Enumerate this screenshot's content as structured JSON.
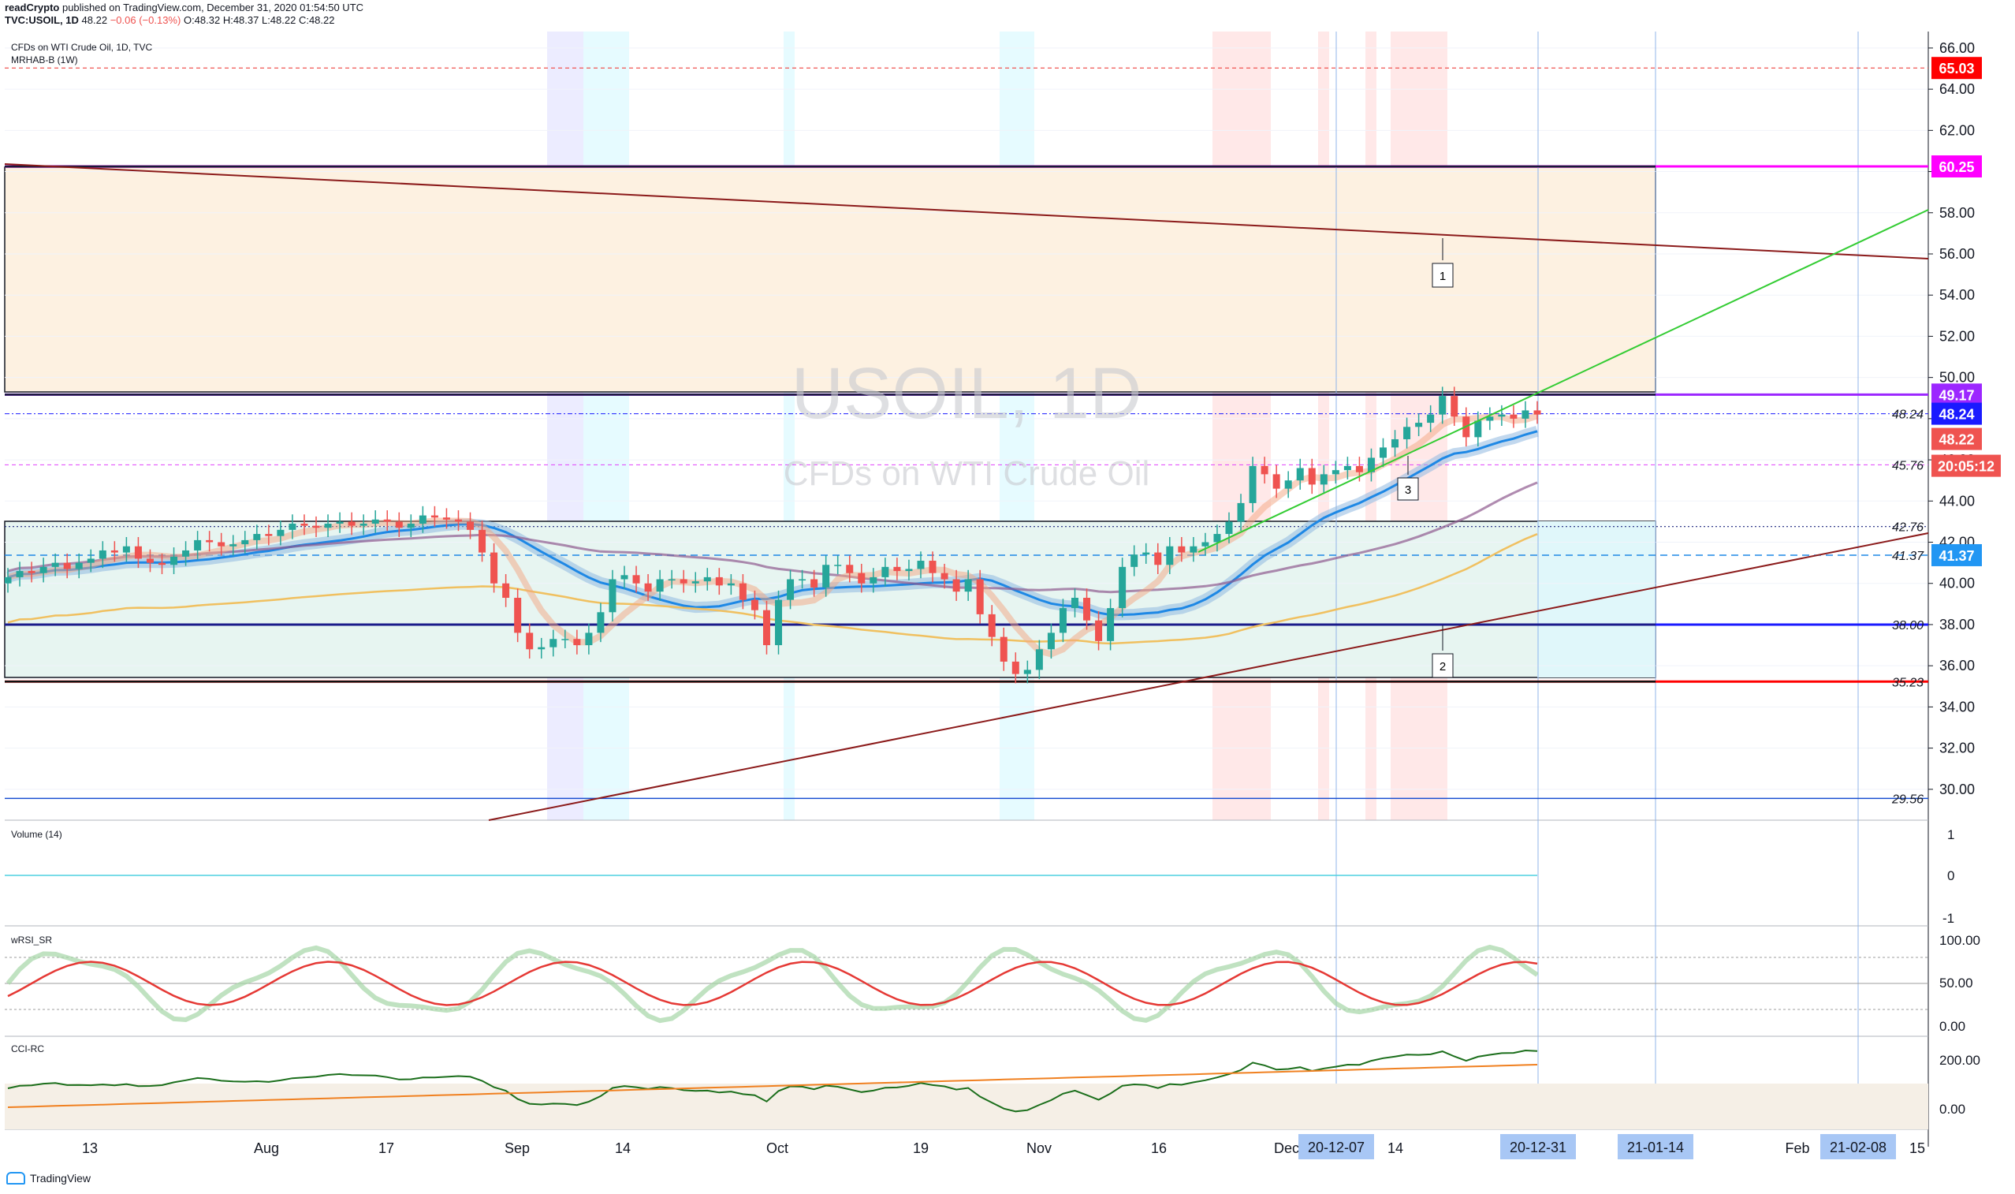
{
  "header": {
    "publisher_line": "readCrypto published on TradingView.com, December 31, 2020 01:54:50 UTC",
    "publisher_name": "readCrypto",
    "published_rest": " published on TradingView.com, December 31, 2020 01:54:50 UTC",
    "symbol_line": "TVC:USOIL, 1D",
    "price": "48.22",
    "change": "−0.06 (−0.13%)",
    "ohlc": "O:48.32 H:48.37 L:48.22 C:48.22"
  },
  "pane_labels": {
    "main_title": "CFDs on WTI Crude Oil, 1D, TVC",
    "indicator": "MRHAB-B (1W)",
    "volume": "Volume (14)",
    "wrsi": "wRSI_SR",
    "cci": "CCI-RC"
  },
  "watermark": {
    "symbol": "USOIL, 1D",
    "name": "CFDs on WTI Crude Oil"
  },
  "colors": {
    "up_candle": "#26a69a",
    "down_candle": "#ef5350",
    "resistance_line": "#8b1a1a",
    "support_trend": "#8b1a1a",
    "green_trend": "#33cc33",
    "magenta_level": "#ff00ff",
    "purple_level": "#9c27ff",
    "blue_level": "#1a1aff",
    "red_level": "#ff0000",
    "box_top": "#fff3e0",
    "box_bottom": "#e0f7fa"
  },
  "chart_data": {
    "type": "candlestick",
    "symbol": "USOIL",
    "timeframe": "1D",
    "ylim": [
      28.5,
      66.8
    ],
    "y_ticks": [
      "66.00",
      "64.00",
      "62.00",
      "60.00",
      "58.00",
      "56.00",
      "54.00",
      "52.00",
      "50.00",
      "48.00",
      "46.00",
      "44.00",
      "42.00",
      "40.00",
      "38.00",
      "36.00",
      "34.00",
      "32.00",
      "30.00"
    ],
    "x_ticks": [
      "13",
      "Aug",
      "17",
      "Sep",
      "14",
      "Oct",
      "19",
      "Nov",
      "16",
      "Dec",
      "14",
      "15",
      "Feb"
    ],
    "x_tick_labels_highlighted": [
      "20-12-07",
      "20-12-31",
      "21-01-14",
      "21-02-08"
    ],
    "price_badges": [
      {
        "value": "65.03",
        "color": "#ff0000"
      },
      {
        "value": "60.25",
        "color": "#ff00ff"
      },
      {
        "value": "49.17",
        "color": "#9c27ff"
      },
      {
        "value": "48.24",
        "color": "#1a1aff"
      },
      {
        "value": "48.22",
        "color": "#ef5350"
      },
      {
        "value": "20:05:12",
        "color": "#ef5350"
      },
      {
        "value": "41.37",
        "color": "#2196f3"
      }
    ],
    "line_labels": [
      "48.24",
      "45.76",
      "42.76",
      "41.37",
      "38.00",
      "35.23",
      "29.56"
    ],
    "levels": [
      {
        "value": 65.03,
        "style": "red-dashed"
      },
      {
        "value": 60.25,
        "style": "magenta"
      },
      {
        "value": 49.17,
        "style": "purple"
      },
      {
        "value": 48.24,
        "style": "blue-dashdot"
      },
      {
        "value": 45.76,
        "style": "magenta-dashed"
      },
      {
        "value": 42.76,
        "style": "navy-dotted"
      },
      {
        "value": 41.37,
        "style": "blue-dashed"
      },
      {
        "value": 38.0,
        "style": "blue"
      },
      {
        "value": 35.23,
        "style": "red"
      },
      {
        "value": 29.56,
        "style": "blue-thin"
      }
    ],
    "annotations": [
      "1",
      "2",
      "3"
    ],
    "close_series": [
      40.3,
      40.6,
      40.5,
      40.8,
      41.0,
      40.7,
      41.0,
      41.2,
      41.6,
      41.5,
      41.8,
      41.2,
      41.0,
      40.9,
      41.3,
      41.6,
      42.1,
      42.0,
      41.8,
      41.9,
      42.1,
      42.4,
      42.3,
      42.6,
      42.9,
      42.8,
      42.7,
      42.9,
      43.0,
      42.8,
      42.9,
      43.1,
      43.0,
      42.7,
      42.9,
      43.3,
      43.2,
      43.1,
      43.0,
      42.6,
      41.5,
      40.0,
      39.3,
      37.6,
      36.8,
      36.9,
      37.3,
      37.3,
      37.0,
      37.6,
      38.6,
      40.2,
      40.4,
      40.0,
      39.6,
      40.2,
      40.2,
      40.0,
      40.1,
      40.3,
      39.9,
      40.0,
      39.2,
      38.7,
      37.0,
      39.2,
      40.2,
      40.2,
      39.8,
      40.9,
      40.9,
      40.5,
      40.0,
      40.3,
      40.8,
      40.6,
      40.7,
      41.1,
      40.5,
      40.2,
      39.6,
      40.2,
      38.5,
      37.4,
      36.2,
      35.6,
      35.8,
      36.8,
      37.6,
      38.8,
      39.3,
      38.2,
      37.2,
      38.8,
      40.8,
      41.4,
      41.5,
      40.9,
      41.8,
      41.5,
      41.8,
      42.0,
      42.4,
      43.0,
      43.9,
      45.7,
      45.3,
      44.6,
      45.0,
      45.6,
      44.8,
      45.3,
      45.5,
      45.7,
      45.4,
      46.1,
      46.6,
      47.0,
      47.6,
      47.8,
      48.2,
      49.1,
      48.1,
      47.1,
      47.9,
      48.1,
      48.2,
      48.0,
      48.4,
      48.2
    ]
  },
  "volume_axis": [
    "1",
    "0",
    "-1"
  ],
  "rsi_axis": [
    "100.00",
    "50.00",
    "0.00"
  ],
  "cci_axis": [
    "200.00",
    "0.00"
  ],
  "footer": {
    "brand": "TradingView"
  }
}
